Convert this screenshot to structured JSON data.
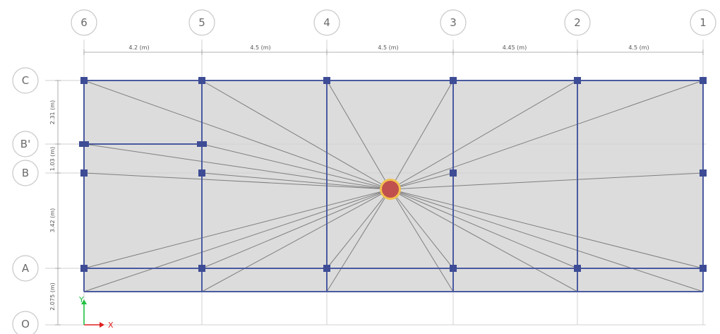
{
  "grid_x": [
    {
      "label": "6",
      "span_right": "4.2 (m)"
    },
    {
      "label": "5",
      "span_right": "4.5 (m)"
    },
    {
      "label": "4",
      "span_right": "4.5 (m)"
    },
    {
      "label": "3",
      "span_right": "4.45 (m)"
    },
    {
      "label": "2",
      "span_right": "4.5 (m)"
    },
    {
      "label": "1",
      "span_right": ""
    }
  ],
  "grid_y": [
    {
      "label": "C",
      "span_below": "2.31 (m)"
    },
    {
      "label": "B'",
      "span_below": "1.03 (m)"
    },
    {
      "label": "B",
      "span_below": "3.42 (m)"
    },
    {
      "label": "A",
      "span_below": "2.075 (m)"
    },
    {
      "label": "O",
      "span_below": ""
    }
  ],
  "axes": {
    "x_label": "X",
    "y_label": "Y",
    "x_color": "#e02020",
    "y_color": "#20c040"
  },
  "colors": {
    "slab": "#dcdcdc",
    "beam": "#4a5aa0",
    "column": "#3d4c95",
    "center_fill": "#c0504d",
    "center_ring": "#f2c14e",
    "diagonal": "#7f7f7f"
  }
}
